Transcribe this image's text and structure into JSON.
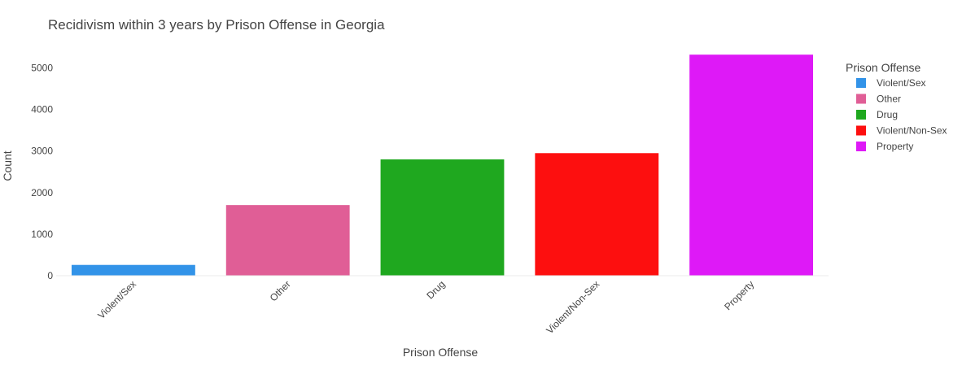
{
  "chart_data": {
    "type": "bar",
    "title": "Recidivism within 3 years by Prison Offense in Georgia",
    "xlabel": "Prison Offense",
    "ylabel": "Count",
    "categories": [
      "Violent/Sex",
      "Other",
      "Drug",
      "Violent/Non-Sex",
      "Property"
    ],
    "values": [
      260,
      1700,
      2800,
      2950,
      5320
    ],
    "colors": [
      "#3293e8",
      "#e05e96",
      "#1fa81f",
      "#fd0f0f",
      "#de19f7"
    ],
    "ylim": [
      0,
      5500
    ],
    "yticks": [
      0,
      1000,
      2000,
      3000,
      4000,
      5000
    ],
    "grid": false,
    "legend": {
      "title": "Prison Offense",
      "placement": "right",
      "items": [
        "Violent/Sex",
        "Other",
        "Drug",
        "Violent/Non-Sex",
        "Property"
      ]
    }
  }
}
